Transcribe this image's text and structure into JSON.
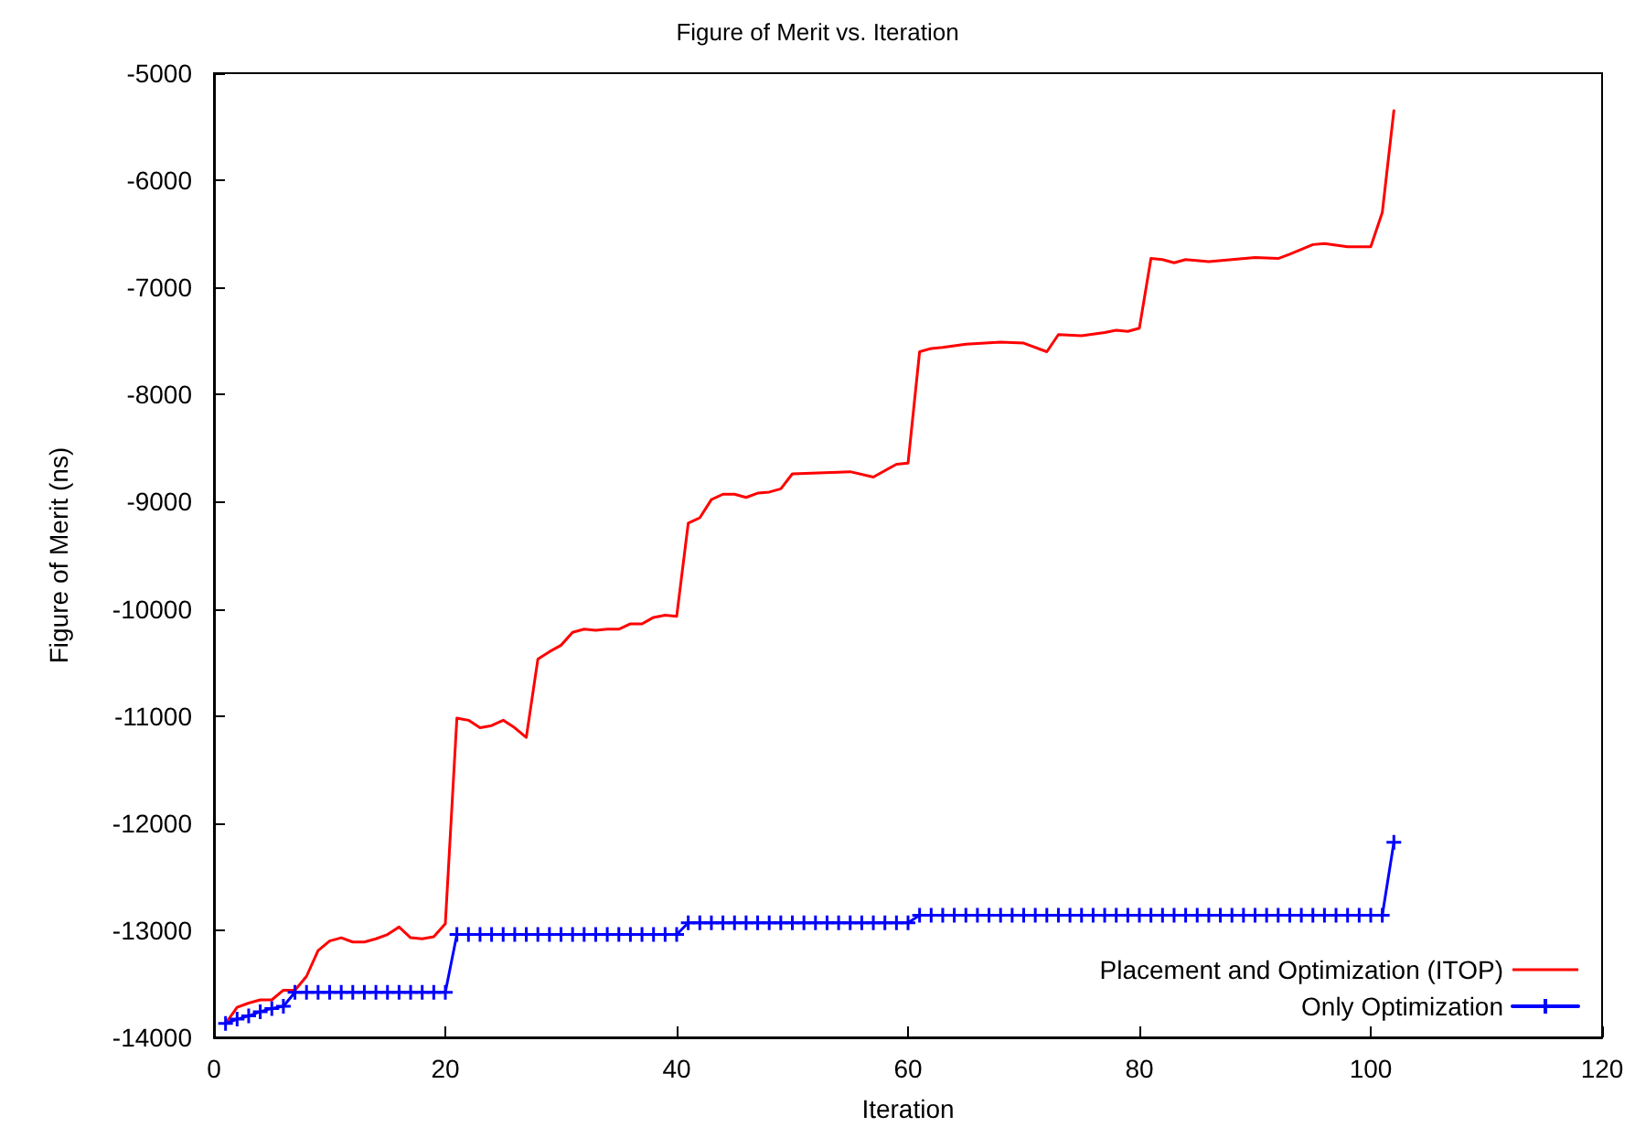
{
  "chart_data": {
    "type": "line",
    "title": "Figure of Merit vs. Iteration",
    "xlabel": "Iteration",
    "ylabel": "Figure of Merit (ns)",
    "xlim": [
      0,
      120
    ],
    "xticks": [
      0,
      20,
      40,
      60,
      80,
      100,
      120
    ],
    "ylim": [
      -14000,
      -5000
    ],
    "yticks": [
      -14000,
      -13000,
      -12000,
      -11000,
      -10000,
      -9000,
      -8000,
      -7000,
      -6000,
      -5000
    ],
    "grid": false,
    "legend": "bottom right",
    "line_style": "solid",
    "series": [
      {
        "name": "Placement and Optimization (ITOP)",
        "color": "#ff0000",
        "marker": "none",
        "x": [
          1,
          2,
          3,
          4,
          5,
          6,
          7,
          8,
          9,
          10,
          11,
          12,
          13,
          14,
          15,
          16,
          17,
          18,
          19,
          20,
          21,
          22,
          23,
          24,
          25,
          26,
          27,
          28,
          29,
          30,
          31,
          32,
          33,
          34,
          35,
          36,
          37,
          38,
          39,
          40,
          41,
          42,
          43,
          44,
          45,
          46,
          47,
          48,
          49,
          50,
          55,
          57,
          59,
          60,
          61,
          62,
          63,
          65,
          68,
          70,
          72,
          73,
          75,
          77,
          78,
          79,
          80,
          81,
          82,
          83,
          84,
          86,
          88,
          90,
          92,
          93,
          95,
          96,
          98,
          100,
          101,
          102
        ],
        "values": [
          -13870,
          -13720,
          -13680,
          -13650,
          -13650,
          -13560,
          -13560,
          -13430,
          -13190,
          -13100,
          -13070,
          -13110,
          -13110,
          -13080,
          -13040,
          -12970,
          -13070,
          -13080,
          -13060,
          -12940,
          -11020,
          -11040,
          -11110,
          -11090,
          -11040,
          -11110,
          -11200,
          -10470,
          -10400,
          -10340,
          -10220,
          -10190,
          -10200,
          -10190,
          -10190,
          -10140,
          -10140,
          -10080,
          -10060,
          -10070,
          -9200,
          -9150,
          -8980,
          -8930,
          -8930,
          -8960,
          -8920,
          -8910,
          -8880,
          -8740,
          -8720,
          -8770,
          -8650,
          -8640,
          -7600,
          -7570,
          -7560,
          -7530,
          -7510,
          -7520,
          -7600,
          -7440,
          -7450,
          -7420,
          -7400,
          -7410,
          -7380,
          -6730,
          -6740,
          -6770,
          -6740,
          -6760,
          -6740,
          -6720,
          -6730,
          -6690,
          -6600,
          -6590,
          -6620,
          -6620,
          -6300,
          -5350
        ]
      },
      {
        "name": "Only Optimization",
        "color": "#0000ff",
        "marker": "cross",
        "x": [
          1,
          2,
          3,
          4,
          5,
          6,
          7,
          8,
          9,
          10,
          11,
          12,
          13,
          14,
          15,
          16,
          17,
          18,
          19,
          20,
          21,
          22,
          23,
          24,
          25,
          26,
          27,
          28,
          29,
          30,
          31,
          32,
          33,
          34,
          35,
          36,
          37,
          38,
          39,
          40,
          41,
          42,
          43,
          44,
          45,
          46,
          47,
          48,
          49,
          50,
          51,
          52,
          53,
          54,
          55,
          56,
          57,
          58,
          59,
          60,
          61,
          62,
          63,
          64,
          65,
          66,
          67,
          68,
          69,
          70,
          71,
          72,
          73,
          74,
          75,
          76,
          77,
          78,
          79,
          80,
          81,
          82,
          83,
          84,
          85,
          86,
          87,
          88,
          89,
          90,
          91,
          92,
          93,
          94,
          95,
          96,
          97,
          98,
          99,
          100,
          101,
          102
        ],
        "values": [
          -13870,
          -13830,
          -13800,
          -13760,
          -13730,
          -13710,
          -13580,
          -13580,
          -13580,
          -13580,
          -13580,
          -13580,
          -13580,
          -13580,
          -13580,
          -13580,
          -13580,
          -13580,
          -13580,
          -13580,
          -13040,
          -13040,
          -13040,
          -13040,
          -13040,
          -13040,
          -13040,
          -13040,
          -13040,
          -13040,
          -13040,
          -13040,
          -13040,
          -13040,
          -13040,
          -13040,
          -13040,
          -13040,
          -13040,
          -13040,
          -12930,
          -12930,
          -12930,
          -12930,
          -12930,
          -12930,
          -12930,
          -12930,
          -12930,
          -12930,
          -12930,
          -12930,
          -12930,
          -12930,
          -12930,
          -12930,
          -12930,
          -12930,
          -12930,
          -12930,
          -12860,
          -12860,
          -12860,
          -12860,
          -12860,
          -12860,
          -12860,
          -12860,
          -12860,
          -12860,
          -12860,
          -12860,
          -12860,
          -12860,
          -12860,
          -12860,
          -12860,
          -12860,
          -12860,
          -12860,
          -12860,
          -12860,
          -12860,
          -12860,
          -12860,
          -12860,
          -12860,
          -12860,
          -12860,
          -12860,
          -12860,
          -12860,
          -12860,
          -12860,
          -12860,
          -12860,
          -12860,
          -12860,
          -12860,
          -12860,
          -12860,
          -12180
        ]
      }
    ]
  }
}
